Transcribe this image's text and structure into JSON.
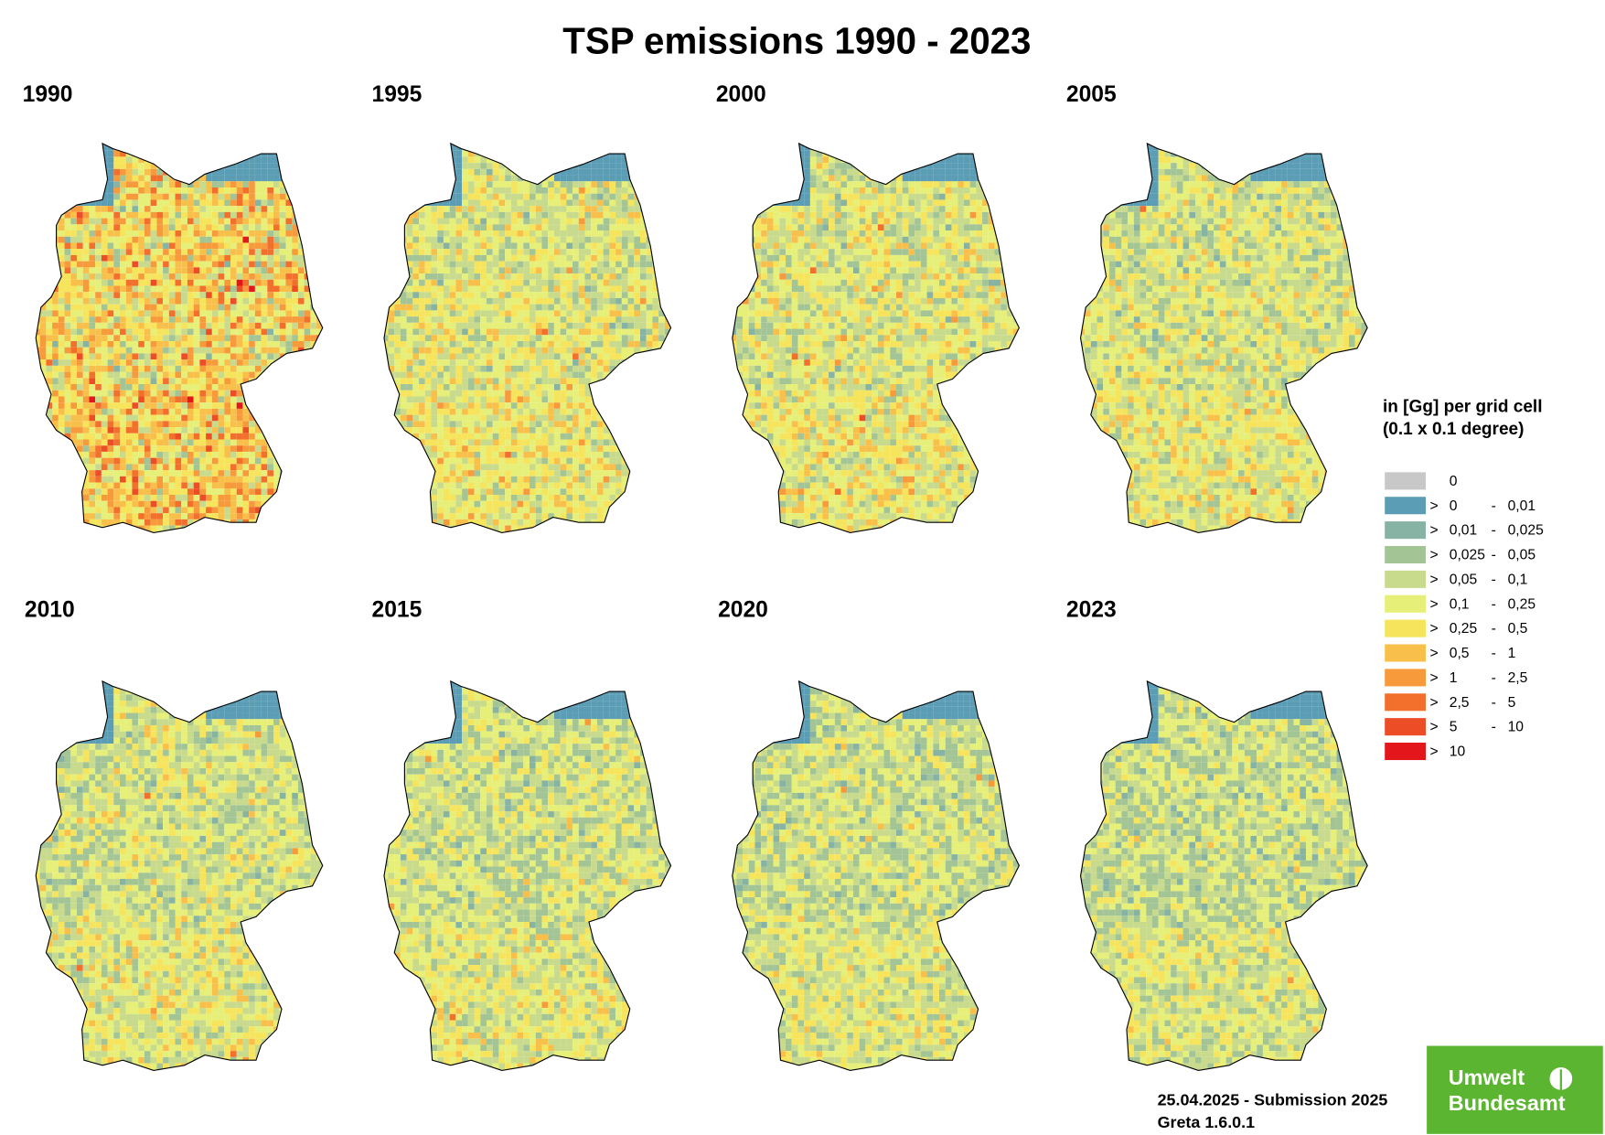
{
  "title": "TSP emissions 1990 - 2023",
  "panels": [
    "1990",
    "1995",
    "2000",
    "2005",
    "2010",
    "2015",
    "2020",
    "2023"
  ],
  "legend": {
    "title": "in [Gg] per grid cell (0.1 x 0.1 degree)",
    "operator": ">",
    "range_separator": "-",
    "items": [
      {
        "color": "#c8c8c8",
        "from": "0"
      },
      {
        "color": "#5b9db5",
        "from": "0",
        "to": "0,01"
      },
      {
        "color": "#86b3a3",
        "from": "0,01",
        "to": "0,025"
      },
      {
        "color": "#a3c495",
        "from": "0,025",
        "to": "0,05"
      },
      {
        "color": "#c8da8c",
        "from": "0,05",
        "to": "0,1"
      },
      {
        "color": "#e6ef78",
        "from": "0,1",
        "to": "0,25"
      },
      {
        "color": "#f5e45c",
        "from": "0,25",
        "to": "0,5"
      },
      {
        "color": "#f8c04a",
        "from": "0,5",
        "to": "1"
      },
      {
        "color": "#f79a3c",
        "from": "1",
        "to": "2,5"
      },
      {
        "color": "#f2702c",
        "from": "2,5",
        "to": "5"
      },
      {
        "color": "#ec4c26",
        "from": "5",
        "to": "10"
      },
      {
        "color": "#e3161b",
        "from": "10"
      }
    ]
  },
  "footer": {
    "submission": "25.04.2025 - Submission 2025",
    "version": "Greta 1.6.0.1"
  },
  "logo": {
    "line1": "Umwelt",
    "line2": "Bundesamt"
  }
}
